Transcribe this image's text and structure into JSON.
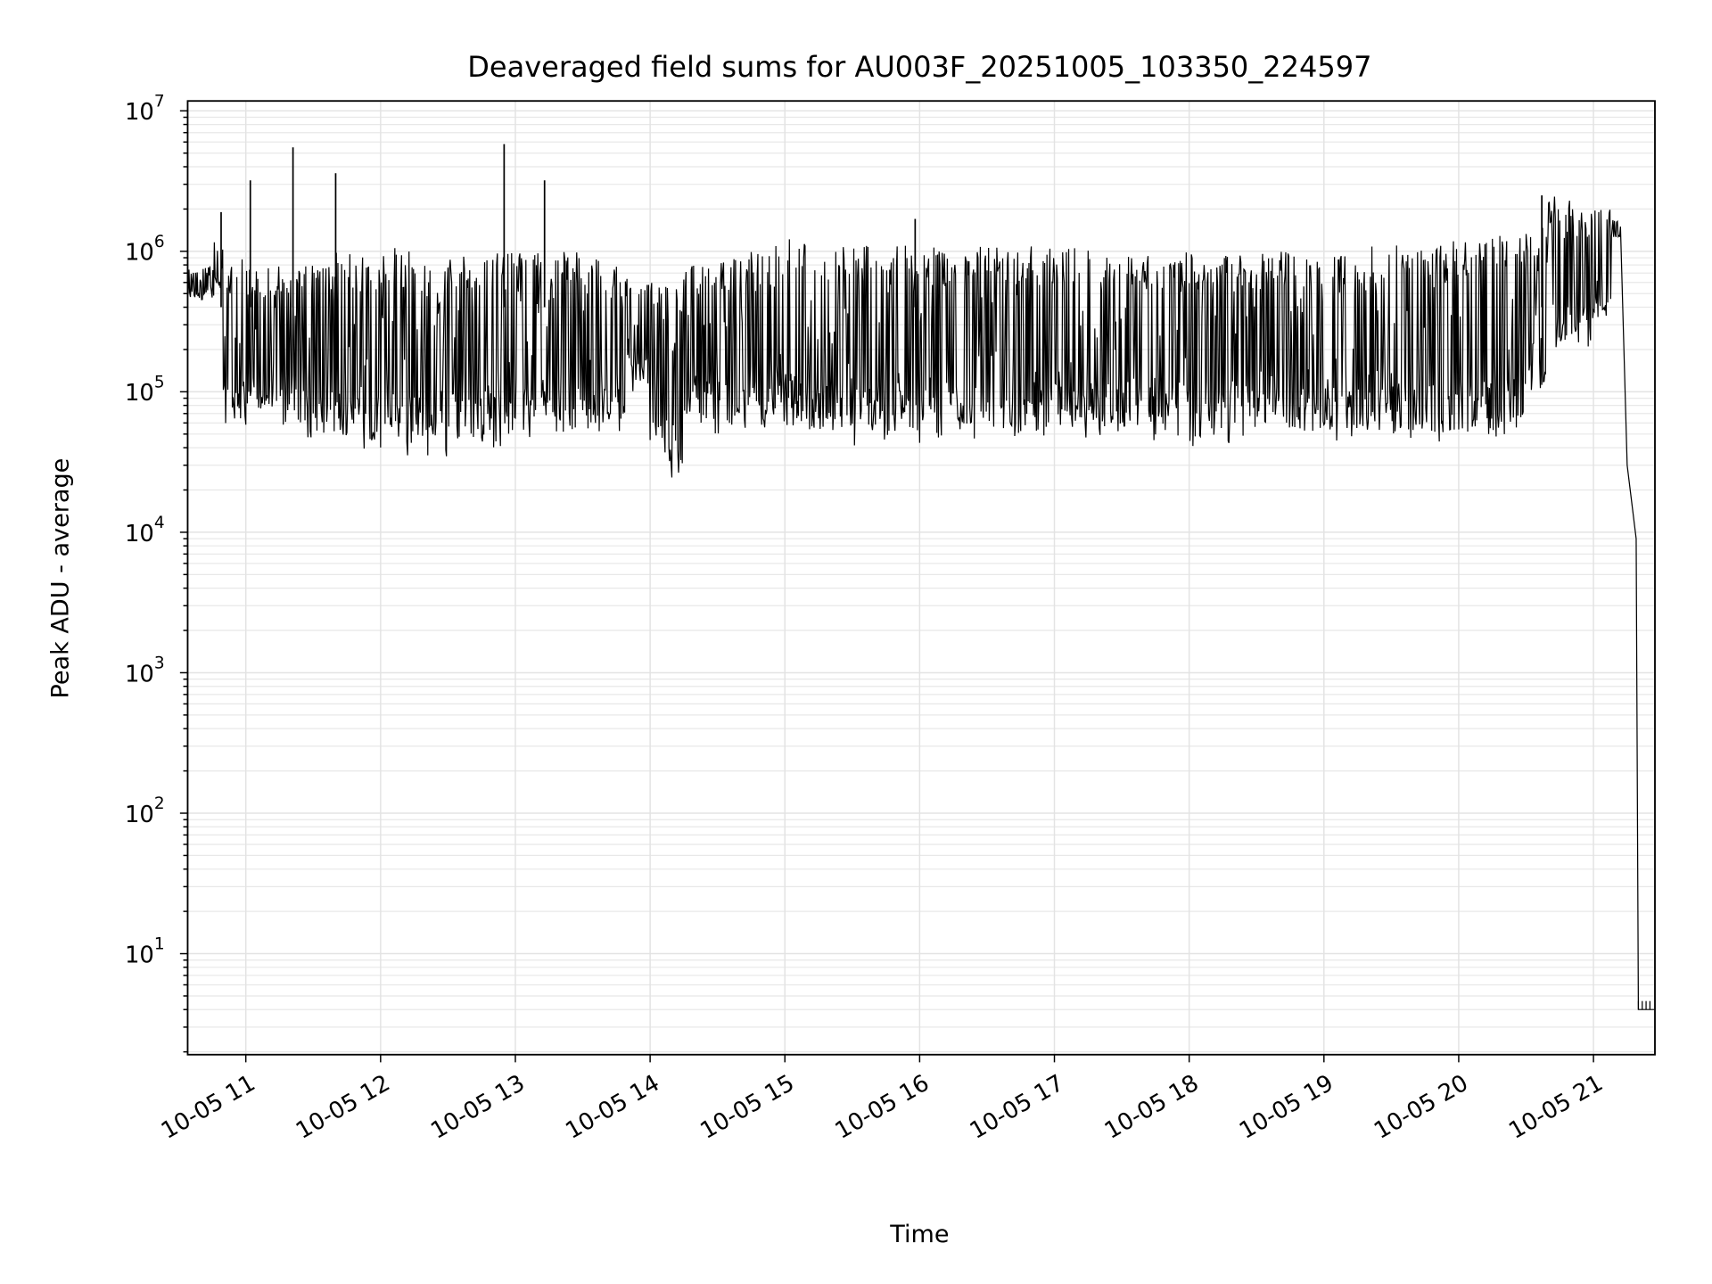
{
  "chart_data": {
    "type": "line",
    "title": "Deaveraged field sums for AU003F_20251005_103350_224597",
    "xlabel": "Time",
    "ylabel": "Peak ADU - average",
    "yscale": "log",
    "ylim": [
      1.9,
      11500000
    ],
    "xlim": [
      "10-05 10:34",
      "10-05 21:27"
    ],
    "grid": true,
    "line_color": "#000000",
    "x_ticks": [
      "10-05 11",
      "10-05 12",
      "10-05 13",
      "10-05 14",
      "10-05 15",
      "10-05 16",
      "10-05 17",
      "10-05 18",
      "10-05 19",
      "10-05 20",
      "10-05 21"
    ],
    "y_ticks": [
      {
        "base": "10",
        "exp": "1"
      },
      {
        "base": "10",
        "exp": "2"
      },
      {
        "base": "10",
        "exp": "3"
      },
      {
        "base": "10",
        "exp": "4"
      },
      {
        "base": "10",
        "exp": "5"
      },
      {
        "base": "10",
        "exp": "6"
      },
      {
        "base": "10",
        "exp": "7"
      }
    ],
    "envelope_note": "per-bin min/max of the noisy series",
    "bins": [
      [
        "10:34",
        450000,
        750000
      ],
      [
        "10:40",
        450000,
        800000
      ],
      [
        "10:46",
        500000,
        1200000
      ],
      [
        "10:50",
        55000,
        900000
      ],
      [
        "11:00",
        50000,
        800000
      ],
      [
        "11:10",
        50000,
        850000
      ],
      [
        "11:20",
        45000,
        800000
      ],
      [
        "11:30",
        45000,
        800000
      ],
      [
        "11:40",
        40000,
        1000000
      ],
      [
        "11:50",
        38000,
        1000000
      ],
      [
        "12:00",
        40000,
        1100000
      ],
      [
        "12:10",
        35000,
        1000000
      ],
      [
        "12:20",
        32000,
        800000
      ],
      [
        "12:30",
        38000,
        1000000
      ],
      [
        "12:40",
        40000,
        1000000
      ],
      [
        "12:50",
        40000,
        1000000
      ],
      [
        "13:00",
        40000,
        1000000
      ],
      [
        "13:10",
        42000,
        1000000
      ],
      [
        "13:20",
        45000,
        1000000
      ],
      [
        "13:30",
        45000,
        900000
      ],
      [
        "13:40",
        50000,
        800000
      ],
      [
        "13:50",
        100000,
        700000
      ],
      [
        "14:00",
        40000,
        700000
      ],
      [
        "14:06",
        24000,
        600000
      ],
      [
        "14:15",
        60000,
        800000
      ],
      [
        "14:25",
        50000,
        900000
      ],
      [
        "14:35",
        50000,
        900000
      ],
      [
        "14:45",
        50000,
        1000000
      ],
      [
        "14:55",
        50000,
        1100000
      ],
      [
        "15:00",
        50000,
        1400000
      ],
      [
        "15:10",
        45000,
        1100000
      ],
      [
        "15:20",
        45000,
        1100000
      ],
      [
        "15:30",
        40000,
        1100000
      ],
      [
        "15:40",
        45000,
        1050000
      ],
      [
        "15:50",
        45000,
        1100000
      ],
      [
        "16:00",
        40000,
        1100000
      ],
      [
        "16:10",
        45000,
        1050000
      ],
      [
        "16:20",
        45000,
        1100000
      ],
      [
        "16:30",
        45000,
        1100000
      ],
      [
        "16:40",
        40000,
        1100000
      ],
      [
        "16:50",
        45000,
        1100000
      ],
      [
        "17:00",
        45000,
        1100000
      ],
      [
        "17:10",
        45000,
        1100000
      ],
      [
        "17:20",
        45000,
        1100000
      ],
      [
        "17:30",
        45000,
        1000000
      ],
      [
        "17:40",
        45000,
        1000000
      ],
      [
        "17:50",
        45000,
        1000000
      ],
      [
        "18:00",
        40000,
        1000000
      ],
      [
        "18:10",
        40000,
        1000000
      ],
      [
        "18:20",
        45000,
        1000000
      ],
      [
        "18:30",
        45000,
        1000000
      ],
      [
        "18:40",
        45000,
        1000000
      ],
      [
        "18:50",
        45000,
        1000000
      ],
      [
        "19:00",
        45000,
        1000000
      ],
      [
        "19:10",
        45000,
        1000000
      ],
      [
        "19:20",
        45000,
        1100000
      ],
      [
        "19:30",
        45000,
        1100000
      ],
      [
        "19:40",
        45000,
        1200000
      ],
      [
        "19:50",
        40000,
        1200000
      ],
      [
        "20:00",
        45000,
        1200000
      ],
      [
        "20:10",
        45000,
        1300000
      ],
      [
        "20:20",
        45000,
        1300000
      ],
      [
        "20:30",
        100000,
        1500000
      ],
      [
        "20:40",
        200000,
        2500000
      ],
      [
        "20:50",
        200000,
        2000000
      ],
      [
        "21:00",
        300000,
        2000000
      ],
      [
        "21:08",
        1200000,
        1700000
      ]
    ],
    "tail": [
      [
        "21:12",
        1500000
      ],
      [
        "21:15",
        30000
      ],
      [
        "21:19",
        9000
      ],
      [
        "21:20",
        4
      ],
      [
        "21:27",
        4
      ]
    ],
    "spikes": [
      [
        "10:49",
        1900000
      ],
      [
        "11:02",
        3200000
      ],
      [
        "11:21",
        5500000
      ],
      [
        "11:40",
        3600000
      ],
      [
        "12:55",
        5800000
      ],
      [
        "13:13",
        3200000
      ],
      [
        "15:58",
        1700000
      ],
      [
        "20:37",
        2500000
      ]
    ]
  }
}
